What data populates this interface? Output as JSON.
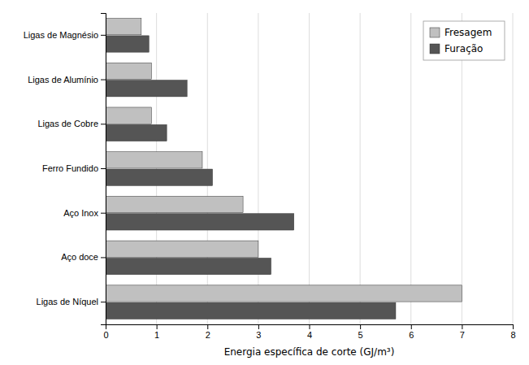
{
  "chart_data": {
    "type": "bar",
    "orientation": "horizontal",
    "categories": [
      "Ligas de Níquel",
      "Aço doce",
      "Aço Inox",
      "Ferro Fundido",
      "Ligas de Cobre",
      "Ligas de Alumínio",
      "Ligas de Magnésio"
    ],
    "series": [
      {
        "name": "Fresagem",
        "color": "#c0c0c0",
        "values": [
          7.0,
          3.0,
          2.7,
          1.9,
          0.9,
          0.9,
          0.7
        ]
      },
      {
        "name": "Furação",
        "color": "#555555",
        "values": [
          5.7,
          3.25,
          3.7,
          2.1,
          1.2,
          1.6,
          0.85
        ]
      }
    ],
    "xlabel": "Energia específica de corte (GJ/m³)",
    "xlim": [
      0,
      8
    ],
    "xticks": [
      0,
      1,
      2,
      3,
      4,
      5,
      6,
      7,
      8
    ],
    "grid": true,
    "legend": "upper right"
  }
}
